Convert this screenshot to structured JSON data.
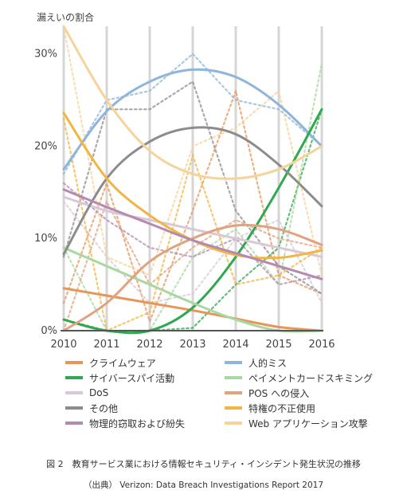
{
  "chart_data": {
    "type": "line",
    "ylabel": "漏えいの割合",
    "x": [
      2010,
      2011,
      2012,
      2013,
      2014,
      2015,
      2016
    ],
    "x_tick_labels": [
      "2010",
      "2011",
      "2012",
      "2013",
      "2014",
      "2015",
      "2016"
    ],
    "y_ticks": [
      0,
      10,
      20,
      30
    ],
    "y_tick_labels": [
      "0%",
      "10%",
      "20%",
      "30%"
    ],
    "ylim": [
      0,
      33
    ],
    "grid": "vertical",
    "legend_position": "bottom",
    "note": "dotted lines show yearly values, solid lines show trends",
    "series": [
      {
        "name": "クライムウェア",
        "color": "#e8955a",
        "values": [
          3,
          16,
          1,
          13,
          26,
          6,
          4
        ],
        "trend": [
          4.6,
          3.8,
          3.0,
          2.2,
          1.3,
          0.4,
          0
        ]
      },
      {
        "name": "人的ミス",
        "color": "#8fb5db",
        "values": [
          17,
          25,
          26,
          30,
          25,
          24,
          20
        ],
        "trend": [
          17.5,
          23.8,
          27.0,
          28.3,
          27.5,
          24.5,
          20.0
        ]
      },
      {
        "name": "サイバースパイ活動",
        "color": "#2fa84f",
        "values": [
          1.2,
          0,
          0,
          0.3,
          5,
          9,
          24
        ],
        "trend": [
          1.2,
          0,
          0,
          2.5,
          8.0,
          15.5,
          24.0
        ]
      },
      {
        "name": "ペイメントカードスキミング",
        "color": "#a8d8a0",
        "values": [
          9,
          0,
          0,
          8,
          11,
          5,
          29
        ],
        "trend": [
          9.0,
          7.0,
          5.0,
          3.0,
          1.2,
          0,
          0
        ]
      },
      {
        "name": "DoS",
        "color": "#d8c8d8",
        "values": [
          14,
          8,
          3,
          4,
          10,
          12,
          3
        ],
        "trend": [
          14.5,
          13.0,
          12.0,
          11.0,
          10.0,
          9.0,
          8.0
        ]
      },
      {
        "name": "POS への侵入",
        "color": "#e0a37f",
        "values": [
          0,
          14,
          5,
          9,
          12,
          10,
          9
        ],
        "trend": [
          0,
          3.0,
          7.5,
          10.0,
          11.4,
          11.0,
          9.3
        ]
      },
      {
        "name": "その他",
        "color": "#8c8c8c",
        "values": [
          8,
          24,
          24,
          27,
          13,
          7,
          4
        ],
        "trend": [
          8.3,
          16.5,
          20.5,
          22.0,
          21.3,
          18.0,
          13.5
        ]
      },
      {
        "name": "特権の不正使用",
        "color": "#f2b542",
        "values": [
          23,
          0,
          2,
          19,
          5,
          6,
          9
        ],
        "trend": [
          23.6,
          16.5,
          12.5,
          9.8,
          8.2,
          7.9,
          8.7
        ]
      },
      {
        "name": "物理的窃取および紛失",
        "color": "#b48ab0",
        "values": [
          16,
          12,
          9,
          8,
          10,
          5,
          6
        ],
        "trend": [
          15.3,
          13.4,
          11.6,
          9.8,
          8.4,
          7.0,
          5.6
        ]
      },
      {
        "name": "Web アプリケーション攻撃",
        "color": "#f5d39a",
        "values": [
          33,
          8,
          6,
          20,
          22,
          26,
          6
        ],
        "trend": [
          33.0,
          25.0,
          19.5,
          17.0,
          16.5,
          17.5,
          20.0
        ]
      }
    ]
  },
  "caption": {
    "title": "図 2　教育サービス業における情報セキュリティ・インシデント発生状況の推移",
    "source": "（出典）  Verizon: Data Breach Investigations Report 2017"
  }
}
